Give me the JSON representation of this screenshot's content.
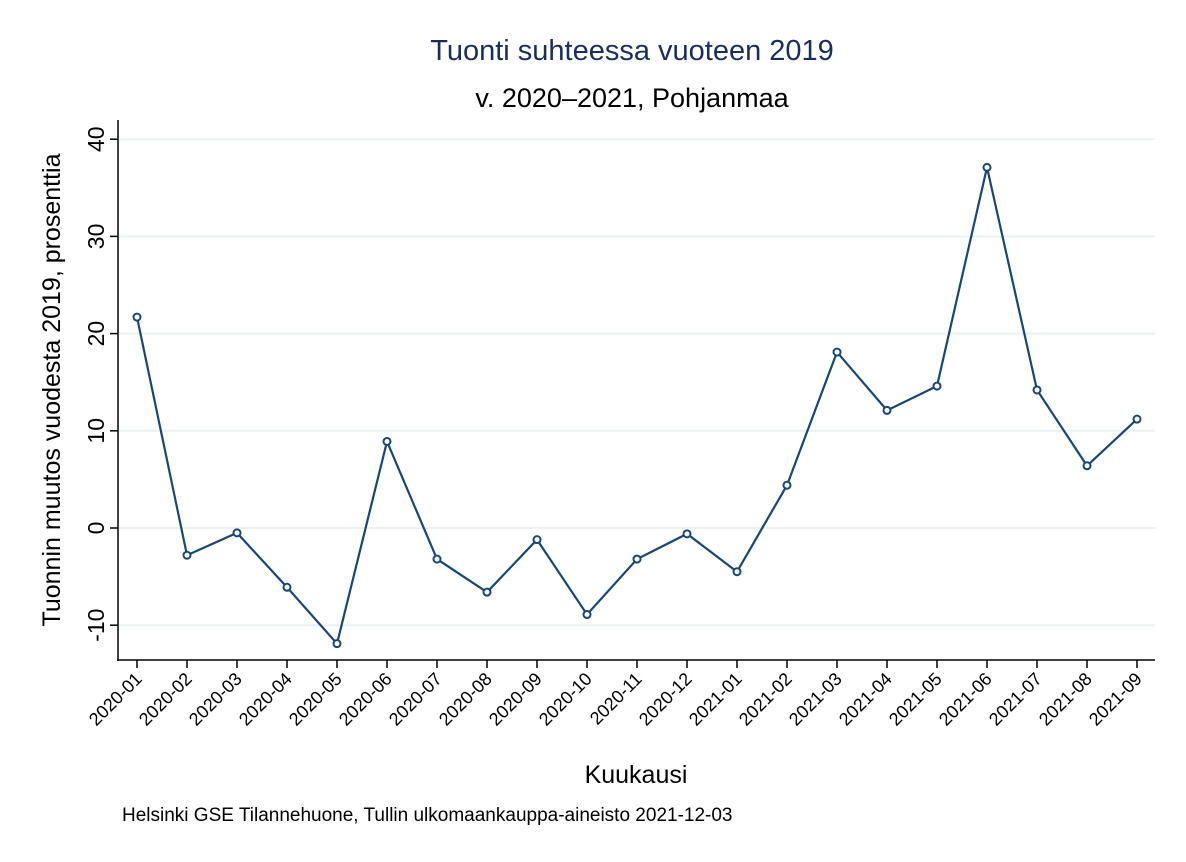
{
  "chart_data": {
    "type": "line",
    "title": "Tuonti suhteessa vuoteen 2019",
    "subtitle": "v. 2020–2021, Pohjanmaa",
    "xlabel": "Kuukausi",
    "ylabel": "Tuonnin muutos vuodesta 2019, prosenttia",
    "note": "Helsinki GSE Tilannehuone, Tullin ulkomaankauppa-aineisto 2021-12-03",
    "ylim": [
      -12,
      42
    ],
    "yticks": [
      -10,
      0,
      10,
      20,
      30,
      40
    ],
    "grid": true,
    "categories": [
      "2020-01",
      "2020-02",
      "2020-03",
      "2020-04",
      "2020-05",
      "2020-06",
      "2020-07",
      "2020-08",
      "2020-09",
      "2020-10",
      "2020-11",
      "2020-12",
      "2021-01",
      "2021-02",
      "2021-03",
      "2021-04",
      "2021-05",
      "2021-06",
      "2021-07",
      "2021-08",
      "2021-09"
    ],
    "values": [
      21.7,
      -2.8,
      -0.5,
      -6.1,
      -11.9,
      8.9,
      -3.2,
      -6.6,
      -1.2,
      -8.9,
      -3.2,
      -0.6,
      -4.5,
      4.4,
      18.1,
      12.1,
      14.6,
      37.1,
      14.2,
      6.4,
      11.2
    ],
    "colors": {
      "line": "#1a476f",
      "title": "#1a2e5a",
      "grid": "#eaf2f3"
    }
  }
}
